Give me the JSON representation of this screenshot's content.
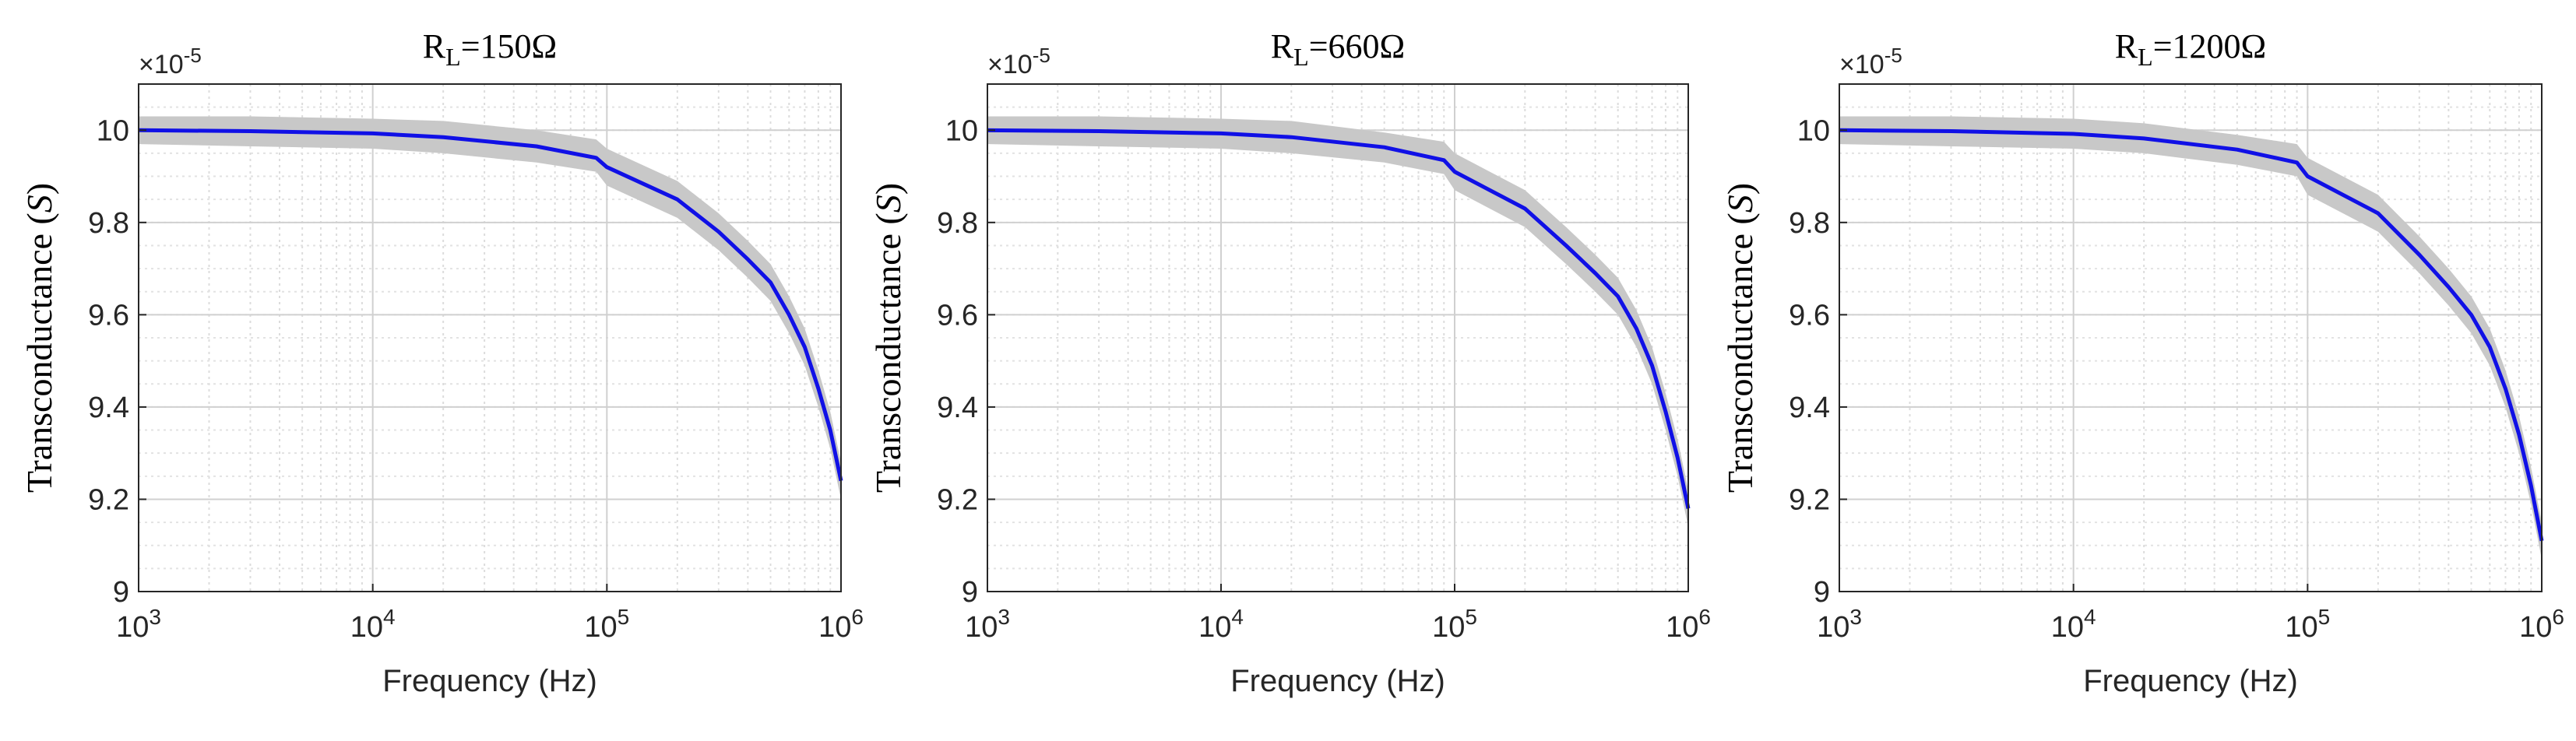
{
  "chart_data": [
    {
      "type": "line",
      "title": "R_L=150Ω",
      "title_parts": {
        "main": "R",
        "sub": "L",
        "rest": "=150Ω"
      },
      "xlabel": "Frequency (Hz)",
      "ylabel_main": "Transconductance (",
      "ylabel_unit": "S",
      "ylabel_close": ")",
      "exponent_label": "×10",
      "exponent_power": "-5",
      "xscale": "log",
      "xlim": [
        1000,
        1000000
      ],
      "ylim": [
        9.0,
        10.1
      ],
      "xticks": [
        {
          "value": 1000,
          "base": "10",
          "power": "3"
        },
        {
          "value": 10000,
          "base": "10",
          "power": "4"
        },
        {
          "value": 100000,
          "base": "10",
          "power": "5"
        },
        {
          "value": 1000000,
          "base": "10",
          "power": "6"
        }
      ],
      "yticks": [
        "9",
        "9.2",
        "9.4",
        "9.6",
        "9.8",
        "10"
      ],
      "grid": "on (major + minor)",
      "band_color": "#c8c8c8",
      "line_color": "#1010e6",
      "series": [
        {
          "name": "mean",
          "x": [
            1000,
            3000,
            10000,
            20000,
            50000,
            90000,
            100000,
            200000,
            300000,
            400000,
            500000,
            600000,
            700000,
            800000,
            900000,
            1000000
          ],
          "y": [
            10.0,
            9.998,
            9.993,
            9.985,
            9.965,
            9.94,
            9.92,
            9.85,
            9.78,
            9.72,
            9.67,
            9.6,
            9.53,
            9.44,
            9.35,
            9.24
          ],
          "upper": [
            10.03,
            10.03,
            10.025,
            10.02,
            10.0,
            9.98,
            9.96,
            9.89,
            9.82,
            9.76,
            9.71,
            9.64,
            9.57,
            9.48,
            9.39,
            9.28
          ],
          "lower": [
            9.97,
            9.965,
            9.96,
            9.95,
            9.93,
            9.91,
            9.88,
            9.81,
            9.74,
            9.68,
            9.63,
            9.56,
            9.49,
            9.4,
            9.31,
            9.2
          ]
        }
      ]
    },
    {
      "type": "line",
      "title": "R_L=660Ω",
      "title_parts": {
        "main": "R",
        "sub": "L",
        "rest": "=660Ω"
      },
      "xlabel": "Frequency (Hz)",
      "ylabel_main": "Transconductance (",
      "ylabel_unit": "S",
      "ylabel_close": ")",
      "exponent_label": "×10",
      "exponent_power": "-5",
      "xscale": "log",
      "xlim": [
        1000,
        1000000
      ],
      "ylim": [
        9.0,
        10.1
      ],
      "xticks": [
        {
          "value": 1000,
          "base": "10",
          "power": "3"
        },
        {
          "value": 10000,
          "base": "10",
          "power": "4"
        },
        {
          "value": 100000,
          "base": "10",
          "power": "5"
        },
        {
          "value": 1000000,
          "base": "10",
          "power": "6"
        }
      ],
      "yticks": [
        "9",
        "9.2",
        "9.4",
        "9.6",
        "9.8",
        "10"
      ],
      "grid": "on (major + minor)",
      "band_color": "#c8c8c8",
      "line_color": "#1010e6",
      "series": [
        {
          "name": "mean",
          "x": [
            1000,
            3000,
            10000,
            20000,
            50000,
            90000,
            100000,
            200000,
            300000,
            400000,
            500000,
            600000,
            700000,
            800000,
            900000,
            1000000
          ],
          "y": [
            10.0,
            9.998,
            9.993,
            9.985,
            9.963,
            9.935,
            9.91,
            9.83,
            9.75,
            9.69,
            9.64,
            9.57,
            9.49,
            9.39,
            9.29,
            9.18
          ],
          "upper": [
            10.03,
            10.03,
            10.025,
            10.02,
            9.995,
            9.975,
            9.95,
            9.87,
            9.79,
            9.73,
            9.68,
            9.61,
            9.53,
            9.43,
            9.33,
            9.22
          ],
          "lower": [
            9.97,
            9.965,
            9.96,
            9.95,
            9.93,
            9.905,
            9.87,
            9.79,
            9.71,
            9.65,
            9.6,
            9.53,
            9.45,
            9.35,
            9.25,
            9.14
          ]
        }
      ]
    },
    {
      "type": "line",
      "title": "R_L=1200Ω",
      "title_parts": {
        "main": "R",
        "sub": "L",
        "rest": "=1200Ω"
      },
      "xlabel": "Frequency (Hz)",
      "ylabel_main": "Transconductance (",
      "ylabel_unit": "S",
      "ylabel_close": ")",
      "exponent_label": "×10",
      "exponent_power": "-5",
      "xscale": "log",
      "xlim": [
        1000,
        1000000
      ],
      "ylim": [
        9.0,
        10.1
      ],
      "xticks": [
        {
          "value": 1000,
          "base": "10",
          "power": "3"
        },
        {
          "value": 10000,
          "base": "10",
          "power": "4"
        },
        {
          "value": 100000,
          "base": "10",
          "power": "5"
        },
        {
          "value": 1000000,
          "base": "10",
          "power": "6"
        }
      ],
      "yticks": [
        "9",
        "9.2",
        "9.4",
        "9.6",
        "9.8",
        "10"
      ],
      "grid": "on (major + minor)",
      "band_color": "#c8c8c8",
      "line_color": "#1010e6",
      "series": [
        {
          "name": "mean",
          "x": [
            1000,
            3000,
            10000,
            20000,
            50000,
            90000,
            100000,
            200000,
            300000,
            400000,
            500000,
            600000,
            700000,
            800000,
            900000,
            1000000
          ],
          "y": [
            10.0,
            9.998,
            9.992,
            9.982,
            9.958,
            9.93,
            9.9,
            9.82,
            9.73,
            9.66,
            9.6,
            9.53,
            9.44,
            9.34,
            9.23,
            9.11
          ],
          "upper": [
            10.03,
            10.03,
            10.025,
            10.015,
            9.99,
            9.97,
            9.94,
            9.86,
            9.77,
            9.7,
            9.64,
            9.57,
            9.48,
            9.38,
            9.27,
            9.15
          ],
          "lower": [
            9.97,
            9.965,
            9.96,
            9.95,
            9.925,
            9.9,
            9.86,
            9.78,
            9.69,
            9.62,
            9.56,
            9.49,
            9.4,
            9.3,
            9.19,
            9.07
          ]
        }
      ]
    }
  ]
}
